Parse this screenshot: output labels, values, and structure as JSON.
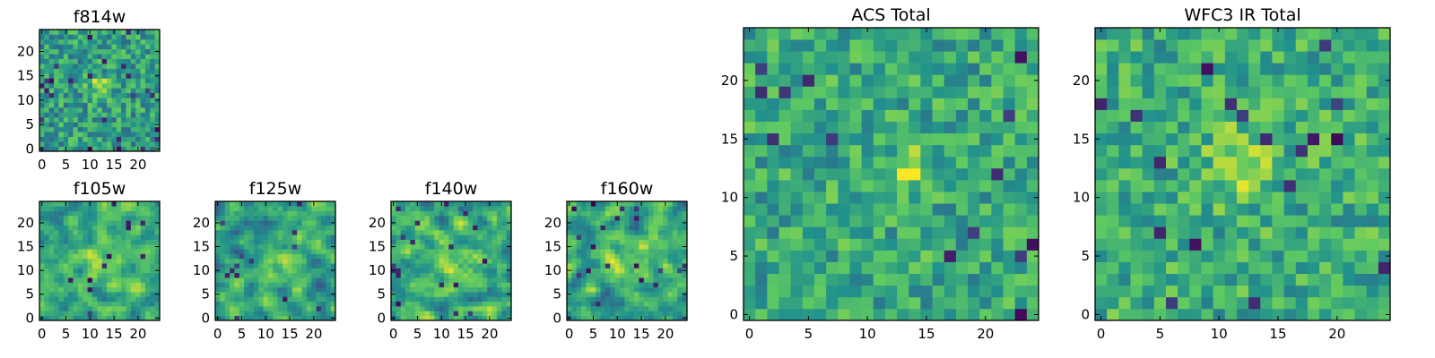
{
  "figure": {
    "background": "#ffffff",
    "colormap": "viridis",
    "colormap_stops": [
      "#440154",
      "#3b528b",
      "#21918c",
      "#5ec962",
      "#fde725"
    ]
  },
  "chart_data": [
    {
      "type": "heatmap",
      "id": "f814w",
      "title": "f814w",
      "grid_size": 25,
      "xlim": [
        -0.5,
        24.5
      ],
      "ylim": [
        -0.5,
        24.5
      ],
      "xticks": [
        0,
        5,
        10,
        15,
        20
      ],
      "yticks": [
        0,
        5,
        10,
        15,
        20
      ],
      "value_range": [
        0,
        1
      ],
      "typical_level": 0.55,
      "spread": 0.22,
      "dark_pixel_fraction": 0.04,
      "smoothing": 0,
      "peak": {
        "x": 12,
        "y": 13,
        "amplitude": 0.35,
        "radius": 1.5
      }
    },
    {
      "type": "heatmap",
      "id": "f105w",
      "title": "f105w",
      "grid_size": 25,
      "xlim": [
        -0.5,
        24.5
      ],
      "ylim": [
        -0.5,
        24.5
      ],
      "xticks": [
        0,
        5,
        10,
        15,
        20
      ],
      "yticks": [
        0,
        5,
        10,
        15,
        20
      ],
      "value_range": [
        0,
        1
      ],
      "typical_level": 0.62,
      "spread": 0.26,
      "dark_pixel_fraction": 0.02,
      "smoothing": 1,
      "peak": {
        "x": 12,
        "y": 12,
        "amplitude": 0.2,
        "radius": 3
      }
    },
    {
      "type": "heatmap",
      "id": "f125w",
      "title": "f125w",
      "grid_size": 25,
      "xlim": [
        -0.5,
        24.5
      ],
      "ylim": [
        -0.5,
        24.5
      ],
      "xticks": [
        0,
        5,
        10,
        15,
        20
      ],
      "yticks": [
        0,
        5,
        10,
        15,
        20
      ],
      "value_range": [
        0,
        1
      ],
      "typical_level": 0.58,
      "spread": 0.3,
      "dark_pixel_fraction": 0.03,
      "smoothing": 1,
      "peak": {
        "x": 12,
        "y": 12,
        "amplitude": 0.15,
        "radius": 3
      }
    },
    {
      "type": "heatmap",
      "id": "f140w",
      "title": "f140w",
      "grid_size": 25,
      "xlim": [
        -0.5,
        24.5
      ],
      "ylim": [
        -0.5,
        24.5
      ],
      "xticks": [
        0,
        5,
        10,
        15,
        20
      ],
      "yticks": [
        0,
        5,
        10,
        15,
        20
      ],
      "value_range": [
        0,
        1
      ],
      "typical_level": 0.62,
      "spread": 0.3,
      "dark_pixel_fraction": 0.03,
      "smoothing": 1,
      "peak": {
        "x": 12,
        "y": 12,
        "amplitude": 0.2,
        "radius": 3
      }
    },
    {
      "type": "heatmap",
      "id": "f160w",
      "title": "f160w",
      "grid_size": 25,
      "xlim": [
        -0.5,
        24.5
      ],
      "ylim": [
        -0.5,
        24.5
      ],
      "xticks": [
        0,
        5,
        10,
        15,
        20
      ],
      "yticks": [
        0,
        5,
        10,
        15,
        20
      ],
      "value_range": [
        0,
        1
      ],
      "typical_level": 0.6,
      "spread": 0.3,
      "dark_pixel_fraction": 0.03,
      "smoothing": 1,
      "peak": {
        "x": 12,
        "y": 12,
        "amplitude": 0.2,
        "radius": 3
      }
    },
    {
      "type": "heatmap",
      "id": "acs-total",
      "title": "ACS Total",
      "grid_size": 25,
      "xlim": [
        -0.5,
        24.5
      ],
      "ylim": [
        -0.5,
        24.5
      ],
      "xticks": [
        0,
        5,
        10,
        15,
        20
      ],
      "yticks": [
        0,
        5,
        10,
        15,
        20
      ],
      "value_range": [
        0,
        1
      ],
      "typical_level": 0.6,
      "spread": 0.2,
      "dark_pixel_fraction": 0.04,
      "smoothing": 0,
      "peak": {
        "x": 13.5,
        "y": 12.5,
        "amplitude": 0.35,
        "radius": 1.2
      }
    },
    {
      "type": "heatmap",
      "id": "wfc3-ir-total",
      "title": "WFC3 IR Total",
      "grid_size": 25,
      "xlim": [
        -0.5,
        24.5
      ],
      "ylim": [
        -0.5,
        24.5
      ],
      "xticks": [
        0,
        5,
        10,
        15,
        20
      ],
      "yticks": [
        0,
        5,
        10,
        15,
        20
      ],
      "value_range": [
        0,
        1
      ],
      "typical_level": 0.62,
      "spread": 0.2,
      "dark_pixel_fraction": 0.04,
      "smoothing": 0,
      "peak": {
        "x": 12,
        "y": 13,
        "amplitude": 0.25,
        "radius": 2
      }
    }
  ]
}
